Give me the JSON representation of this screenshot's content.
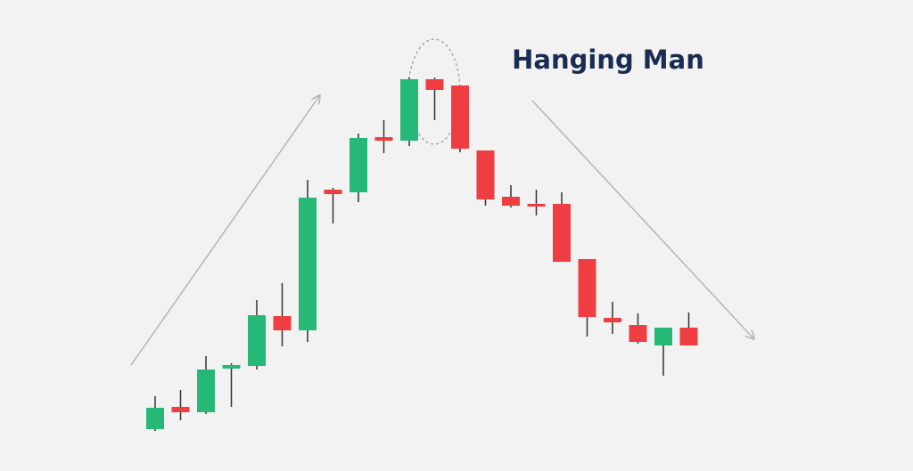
{
  "chart_data": {
    "type": "candlestick",
    "title": "Hanging Man",
    "open": [
      47,
      72,
      66,
      115,
      118,
      174,
      158,
      316,
      313,
      375,
      371,
      440,
      433,
      360,
      308,
      300,
      300,
      238,
      172,
      164,
      141,
      161
    ],
    "high": [
      84,
      91,
      129,
      121,
      192,
      211,
      327,
      318,
      379,
      394,
      442,
      442,
      433,
      360,
      321,
      316,
      313,
      238,
      190,
      177,
      161,
      178
    ],
    "low": [
      45,
      57,
      64,
      72,
      114,
      140,
      145,
      278,
      302,
      357,
      365,
      394,
      358,
      298,
      296,
      287,
      235,
      151,
      154,
      143,
      107,
      141
    ],
    "close": [
      71,
      66,
      114,
      119,
      175,
      158,
      307,
      311,
      374,
      371,
      440,
      428,
      362,
      305,
      298,
      297,
      235,
      173,
      167,
      145,
      161,
      141
    ],
    "up_color": "#26b877",
    "down_color": "#ef3e42",
    "ylim": [
      0,
      529
    ]
  }
}
